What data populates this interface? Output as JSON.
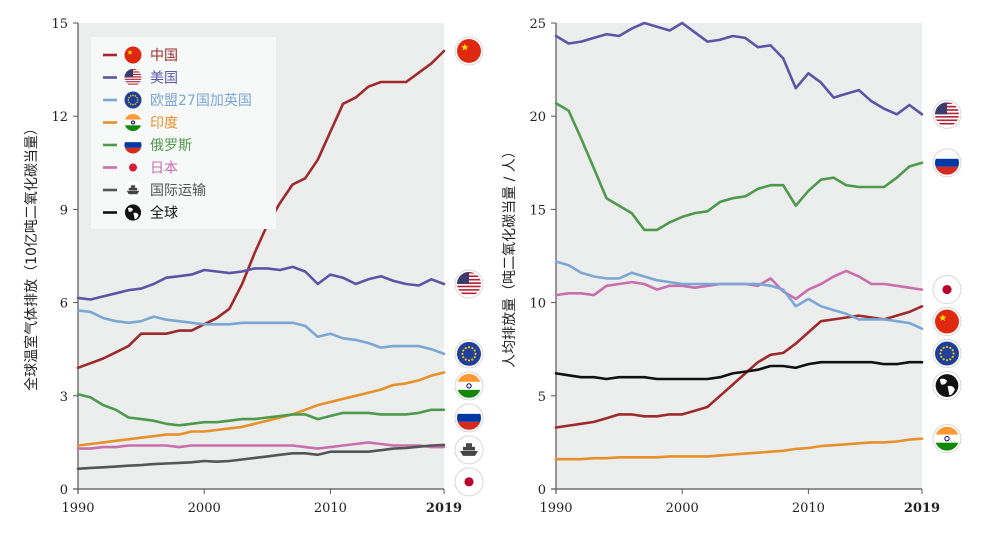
{
  "colors": {
    "china": "#9e2a2b",
    "usa": "#5c55a6",
    "eu": "#7ba7d4",
    "india": "#e8902a",
    "russia": "#4e9a4c",
    "japan": "#c86fae",
    "shipping": "#555555",
    "world": "#111111"
  },
  "legend": [
    {
      "key": "china",
      "label": "中国",
      "icon": "china-flag-icon"
    },
    {
      "key": "usa",
      "label": "美国",
      "icon": "usa-flag-icon"
    },
    {
      "key": "eu",
      "label": "欧盟27国加英国",
      "icon": "eu-flag-icon"
    },
    {
      "key": "india",
      "label": "印度",
      "icon": "india-flag-icon"
    },
    {
      "key": "russia",
      "label": "俄罗斯",
      "icon": "russia-flag-icon"
    },
    {
      "key": "japan",
      "label": "日本",
      "icon": "japan-dot-icon"
    },
    {
      "key": "shipping",
      "label": "国际运输",
      "icon": "ship-icon"
    },
    {
      "key": "world",
      "label": "全球",
      "icon": "globe-icon"
    }
  ],
  "chart_data": [
    {
      "type": "line",
      "title": "",
      "xlabel": "",
      "ylabel": "全球温室气体排放（10亿吨二氧化碳当量）",
      "xlim": [
        1990,
        2019
      ],
      "ylim": [
        0,
        15
      ],
      "x_ticks": [
        "1990",
        "2000",
        "2010",
        "2019"
      ],
      "y_ticks": [
        "0",
        "3",
        "6",
        "9",
        "12",
        "15"
      ],
      "x": [
        1990,
        1991,
        1992,
        1993,
        1994,
        1995,
        1996,
        1997,
        1998,
        1999,
        2000,
        2001,
        2002,
        2003,
        2004,
        2005,
        2006,
        2007,
        2008,
        2009,
        2010,
        2011,
        2012,
        2013,
        2014,
        2015,
        2016,
        2017,
        2018,
        2019
      ],
      "series": [
        {
          "key": "china",
          "name": "中国",
          "values": [
            3.9,
            4.05,
            4.2,
            4.4,
            4.6,
            5.0,
            5.0,
            5.0,
            5.1,
            5.1,
            5.3,
            5.5,
            5.8,
            6.6,
            7.6,
            8.5,
            9.2,
            9.8,
            10.0,
            10.6,
            11.5,
            12.4,
            12.6,
            12.95,
            13.1,
            13.1,
            13.1,
            13.4,
            13.7,
            14.1
          ]
        },
        {
          "key": "usa",
          "name": "美国",
          "values": [
            6.15,
            6.1,
            6.2,
            6.3,
            6.4,
            6.45,
            6.6,
            6.8,
            6.85,
            6.9,
            7.05,
            7.0,
            6.95,
            7.0,
            7.1,
            7.1,
            7.05,
            7.15,
            7.0,
            6.6,
            6.9,
            6.8,
            6.6,
            6.75,
            6.85,
            6.7,
            6.6,
            6.55,
            6.75,
            6.6
          ]
        },
        {
          "key": "eu",
          "name": "欧盟27国加英国",
          "values": [
            5.75,
            5.7,
            5.5,
            5.4,
            5.35,
            5.4,
            5.55,
            5.45,
            5.4,
            5.35,
            5.3,
            5.3,
            5.3,
            5.35,
            5.35,
            5.35,
            5.35,
            5.35,
            5.25,
            4.9,
            5.0,
            4.85,
            4.8,
            4.7,
            4.55,
            4.6,
            4.6,
            4.6,
            4.5,
            4.35
          ]
        },
        {
          "key": "india",
          "name": "印度",
          "values": [
            1.4,
            1.45,
            1.5,
            1.55,
            1.6,
            1.65,
            1.7,
            1.75,
            1.75,
            1.85,
            1.85,
            1.9,
            1.95,
            2.0,
            2.1,
            2.2,
            2.3,
            2.4,
            2.55,
            2.7,
            2.8,
            2.9,
            3.0,
            3.1,
            3.2,
            3.35,
            3.4,
            3.5,
            3.65,
            3.75
          ]
        },
        {
          "key": "russia",
          "name": "俄罗斯",
          "values": [
            3.05,
            2.95,
            2.7,
            2.55,
            2.3,
            2.25,
            2.2,
            2.1,
            2.05,
            2.1,
            2.15,
            2.15,
            2.2,
            2.25,
            2.25,
            2.3,
            2.35,
            2.4,
            2.4,
            2.25,
            2.35,
            2.45,
            2.45,
            2.45,
            2.4,
            2.4,
            2.4,
            2.45,
            2.55,
            2.55
          ]
        },
        {
          "key": "japan",
          "name": "日本",
          "values": [
            1.3,
            1.3,
            1.35,
            1.35,
            1.4,
            1.4,
            1.4,
            1.4,
            1.35,
            1.4,
            1.4,
            1.4,
            1.4,
            1.4,
            1.4,
            1.4,
            1.4,
            1.4,
            1.35,
            1.3,
            1.35,
            1.4,
            1.45,
            1.5,
            1.45,
            1.4,
            1.4,
            1.4,
            1.35,
            1.35
          ]
        },
        {
          "key": "shipping",
          "name": "国际运输",
          "values": [
            0.65,
            0.68,
            0.7,
            0.72,
            0.75,
            0.77,
            0.8,
            0.82,
            0.84,
            0.86,
            0.9,
            0.88,
            0.9,
            0.95,
            1.0,
            1.05,
            1.1,
            1.15,
            1.15,
            1.1,
            1.2,
            1.2,
            1.2,
            1.2,
            1.25,
            1.3,
            1.32,
            1.36,
            1.4,
            1.42
          ]
        }
      ],
      "end_icons": [
        "china-flag-icon",
        "usa-flag-icon",
        "eu-flag-icon",
        "india-flag-icon",
        "russia-flag-icon",
        "ship-icon",
        "japan-dot-icon"
      ]
    },
    {
      "type": "line",
      "title": "",
      "xlabel": "",
      "ylabel": "人均排放量（吨二氧化碳当量 / 人）",
      "xlim": [
        1990,
        2019
      ],
      "ylim": [
        0,
        25
      ],
      "x_ticks": [
        "1990",
        "2000",
        "2010",
        "2019"
      ],
      "y_ticks": [
        "0",
        "5",
        "10",
        "15",
        "20",
        "25"
      ],
      "x": [
        1990,
        1991,
        1992,
        1993,
        1994,
        1995,
        1996,
        1997,
        1998,
        1999,
        2000,
        2001,
        2002,
        2003,
        2004,
        2005,
        2006,
        2007,
        2008,
        2009,
        2010,
        2011,
        2012,
        2013,
        2014,
        2015,
        2016,
        2017,
        2018,
        2019
      ],
      "series": [
        {
          "key": "usa",
          "name": "美国",
          "values": [
            24.3,
            23.9,
            24.0,
            24.2,
            24.4,
            24.3,
            24.7,
            25.0,
            24.8,
            24.6,
            25.0,
            24.5,
            24.0,
            24.1,
            24.3,
            24.2,
            23.7,
            23.8,
            23.1,
            21.5,
            22.3,
            21.8,
            21.0,
            21.2,
            21.4,
            20.8,
            20.4,
            20.1,
            20.6,
            20.1
          ]
        },
        {
          "key": "russia",
          "name": "俄罗斯",
          "values": [
            20.7,
            20.3,
            18.8,
            17.2,
            15.6,
            15.2,
            14.8,
            13.9,
            13.9,
            14.3,
            14.6,
            14.8,
            14.9,
            15.4,
            15.6,
            15.7,
            16.1,
            16.3,
            16.3,
            15.2,
            16.0,
            16.6,
            16.7,
            16.3,
            16.2,
            16.2,
            16.2,
            16.7,
            17.3,
            17.5
          ]
        },
        {
          "key": "japan",
          "name": "日本",
          "values": [
            10.4,
            10.5,
            10.5,
            10.4,
            10.9,
            11.0,
            11.1,
            11.0,
            10.7,
            10.9,
            10.9,
            10.8,
            10.9,
            11.0,
            11.0,
            11.0,
            10.9,
            11.3,
            10.6,
            10.2,
            10.7,
            11.0,
            11.4,
            11.7,
            11.4,
            11.0,
            11.0,
            10.9,
            10.8,
            10.7
          ]
        },
        {
          "key": "china",
          "name": "中国",
          "values": [
            3.3,
            3.4,
            3.5,
            3.6,
            3.8,
            4.0,
            4.0,
            3.9,
            3.9,
            4.0,
            4.0,
            4.2,
            4.4,
            5.0,
            5.6,
            6.2,
            6.8,
            7.2,
            7.3,
            7.8,
            8.4,
            9.0,
            9.1,
            9.2,
            9.3,
            9.2,
            9.1,
            9.3,
            9.5,
            9.8
          ]
        },
        {
          "key": "eu",
          "name": "欧盟27国加英国",
          "values": [
            12.2,
            12.0,
            11.6,
            11.4,
            11.3,
            11.3,
            11.6,
            11.4,
            11.2,
            11.1,
            11.0,
            11.0,
            11.0,
            11.0,
            11.0,
            11.0,
            11.0,
            10.9,
            10.7,
            9.8,
            10.2,
            9.8,
            9.6,
            9.4,
            9.1,
            9.1,
            9.1,
            9.0,
            8.9,
            8.6
          ]
        },
        {
          "key": "world",
          "name": "全球",
          "values": [
            6.2,
            6.1,
            6.0,
            6.0,
            5.9,
            6.0,
            6.0,
            6.0,
            5.9,
            5.9,
            5.9,
            5.9,
            5.9,
            6.0,
            6.2,
            6.3,
            6.4,
            6.6,
            6.6,
            6.5,
            6.7,
            6.8,
            6.8,
            6.8,
            6.8,
            6.8,
            6.7,
            6.7,
            6.8,
            6.8
          ]
        },
        {
          "key": "india",
          "name": "印度",
          "values": [
            1.6,
            1.6,
            1.6,
            1.65,
            1.65,
            1.7,
            1.7,
            1.7,
            1.7,
            1.75,
            1.75,
            1.75,
            1.75,
            1.8,
            1.85,
            1.9,
            1.95,
            2.0,
            2.05,
            2.15,
            2.2,
            2.3,
            2.35,
            2.4,
            2.45,
            2.5,
            2.5,
            2.55,
            2.65,
            2.7
          ]
        }
      ],
      "end_icons": [
        "usa-flag-icon",
        "russia-flag-icon",
        "japan-dot-icon",
        "china-flag-icon",
        "eu-flag-icon",
        "globe-icon",
        "india-flag-icon"
      ]
    }
  ]
}
